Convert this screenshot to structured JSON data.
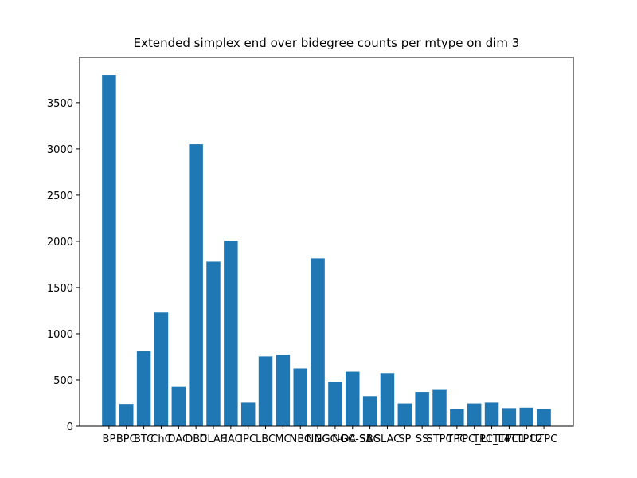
{
  "chart_data": {
    "type": "bar",
    "title": "Extended simplex end over bidegree counts per mtype on dim 3",
    "categories": [
      "BP",
      "BPC",
      "BTC",
      "ChC",
      "DAC",
      "DBC",
      "DLAC",
      "HAC",
      "IPC",
      "LBC",
      "MC",
      "NBC",
      "NGC",
      "NGC-DA",
      "NGC-SA",
      "SBC",
      "SLAC",
      "SP",
      "SS",
      "STPC",
      "TPC",
      "TPC_L1",
      "TPC_L4",
      "TTPC1",
      "TTPC2",
      "UTPC"
    ],
    "values": [
      3800,
      240,
      815,
      1230,
      425,
      3050,
      1780,
      2005,
      255,
      755,
      775,
      625,
      1815,
      480,
      590,
      325,
      575,
      245,
      370,
      400,
      185,
      245,
      255,
      195,
      200,
      185
    ],
    "color": "#1f77b4",
    "ylim": [
      0,
      3990
    ],
    "yticks": [
      0,
      500,
      1000,
      1500,
      2000,
      2500,
      3000,
      3500
    ]
  }
}
